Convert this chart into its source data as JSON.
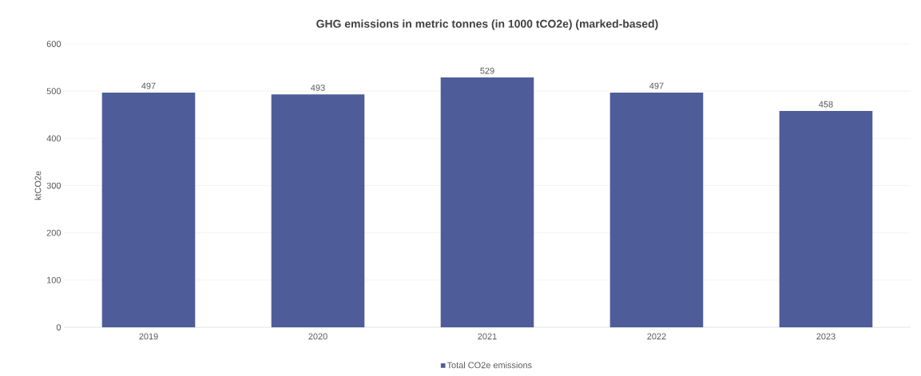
{
  "chart_data": {
    "type": "bar",
    "title": "GHG emissions in metric tonnes (in 1000 tCO2e) (marked-based)",
    "ylabel": "ktCO2e",
    "categories": [
      "2019",
      "2020",
      "2021",
      "2022",
      "2023"
    ],
    "series": [
      {
        "name": "Total CO2e emissions",
        "color": "#4e5d99",
        "values": [
          497,
          493,
          529,
          497,
          458
        ]
      }
    ],
    "ylim": [
      0,
      600
    ],
    "yticks": [
      0,
      100,
      200,
      300,
      400,
      500,
      600
    ],
    "grid": "y",
    "legend": "bottom",
    "data_labels": true
  }
}
